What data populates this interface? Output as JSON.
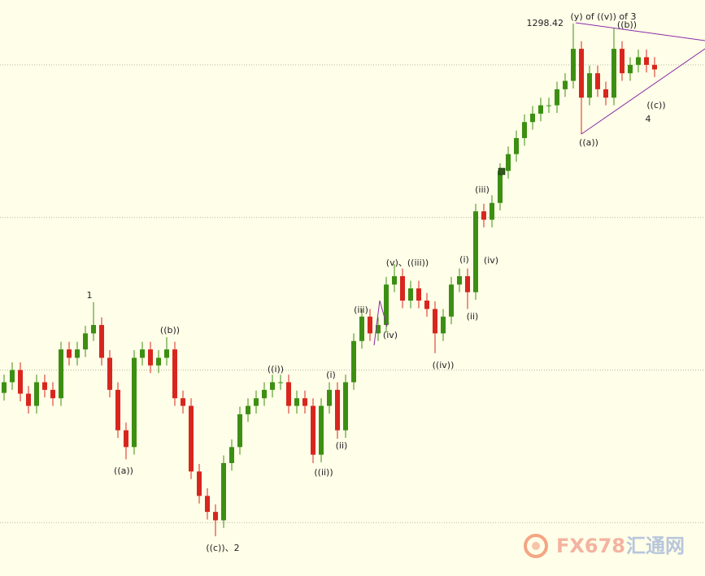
{
  "chart_data": {
    "type": "candlestick",
    "open": [
      1250.0,
      1251.4,
      1253.0,
      1249.9,
      1248.3,
      1251.4,
      1250.4,
      1249.3,
      1255.7,
      1254.6,
      1255.7,
      1257.8,
      1258.9,
      1254.6,
      1250.4,
      1245.1,
      1242.9,
      1254.6,
      1255.7,
      1253.6,
      1254.6,
      1255.7,
      1249.3,
      1248.3,
      1239.7,
      1236.5,
      1234.4,
      1233.3,
      1240.8,
      1242.9,
      1247.2,
      1248.3,
      1249.3,
      1250.4,
      1251.4,
      1251.4,
      1248.3,
      1249.3,
      1248.3,
      1241.9,
      1248.3,
      1250.4,
      1245.1,
      1251.4,
      1256.8,
      1260.0,
      1257.8,
      1258.9,
      1264.2,
      1265.3,
      1262.1,
      1263.7,
      1262.1,
      1261.0,
      1257.8,
      1260.0,
      1264.2,
      1265.3,
      1263.2,
      1273.8,
      1272.7,
      1274.9,
      1279.1,
      1281.3,
      1283.4,
      1285.5,
      1286.6,
      1287.7,
      1287.7,
      1289.8,
      1290.9,
      1295.1,
      1288.7,
      1291.9,
      1289.8,
      1288.7,
      1295.1,
      1291.9,
      1293.0,
      1294.0,
      1293.0
    ],
    "high": [
      1252.4,
      1254.0,
      1254.0,
      1250.9,
      1252.4,
      1252.4,
      1251.4,
      1256.7,
      1256.7,
      1256.7,
      1258.8,
      1261.9,
      1259.9,
      1255.6,
      1251.4,
      1246.1,
      1255.6,
      1256.7,
      1256.7,
      1255.6,
      1257.3,
      1256.7,
      1250.3,
      1249.3,
      1240.7,
      1237.5,
      1235.4,
      1241.8,
      1243.9,
      1248.2,
      1249.3,
      1250.3,
      1251.4,
      1252.4,
      1252.4,
      1252.4,
      1250.3,
      1250.3,
      1249.3,
      1249.3,
      1251.4,
      1251.4,
      1252.4,
      1257.8,
      1261.0,
      1261.0,
      1259.9,
      1265.2,
      1266.9,
      1266.3,
      1264.7,
      1264.7,
      1263.1,
      1262.0,
      1261.0,
      1265.2,
      1266.3,
      1266.3,
      1274.8,
      1274.8,
      1275.9,
      1280.1,
      1282.3,
      1284.4,
      1286.5,
      1287.6,
      1288.7,
      1288.7,
      1290.8,
      1291.9,
      1298.42,
      1296.1,
      1292.9,
      1292.9,
      1290.8,
      1297.8,
      1296.1,
      1294.0,
      1295.0,
      1295.0,
      1294.0
    ],
    "low": [
      1249.0,
      1250.4,
      1248.9,
      1247.3,
      1247.3,
      1249.4,
      1248.3,
      1248.3,
      1253.6,
      1253.6,
      1254.7,
      1256.8,
      1253.6,
      1249.4,
      1244.1,
      1241.3,
      1241.9,
      1253.6,
      1252.6,
      1252.6,
      1253.6,
      1248.3,
      1247.3,
      1238.7,
      1235.5,
      1233.4,
      1231.2,
      1232.3,
      1239.8,
      1241.9,
      1246.2,
      1247.3,
      1248.3,
      1249.4,
      1250.4,
      1247.3,
      1247.3,
      1247.3,
      1240.8,
      1240.9,
      1247.3,
      1244.0,
      1244.1,
      1250.4,
      1255.8,
      1256.8,
      1256.8,
      1257.9,
      1263.2,
      1261.1,
      1261.1,
      1261.1,
      1260.0,
      1255.2,
      1256.8,
      1259.0,
      1263.2,
      1261.0,
      1262.2,
      1271.7,
      1271.7,
      1273.9,
      1278.1,
      1280.3,
      1282.4,
      1284.5,
      1285.6,
      1286.7,
      1286.7,
      1288.8,
      1289.9,
      1283.9,
      1287.7,
      1288.8,
      1287.7,
      1287.7,
      1290.9,
      1290.9,
      1292.0,
      1292.0,
      1291.4
    ],
    "close": [
      1251.4,
      1253.0,
      1249.9,
      1248.3,
      1251.4,
      1250.4,
      1249.3,
      1255.7,
      1254.6,
      1255.7,
      1257.8,
      1258.9,
      1254.6,
      1250.4,
      1245.1,
      1242.9,
      1254.6,
      1255.7,
      1253.6,
      1254.6,
      1255.7,
      1249.3,
      1248.3,
      1239.7,
      1236.5,
      1234.4,
      1233.3,
      1240.8,
      1242.9,
      1247.2,
      1248.3,
      1249.3,
      1250.4,
      1251.4,
      1251.4,
      1248.3,
      1249.3,
      1248.3,
      1241.9,
      1248.3,
      1250.4,
      1245.1,
      1251.4,
      1256.8,
      1260.0,
      1257.8,
      1258.9,
      1264.2,
      1265.3,
      1262.1,
      1263.7,
      1262.1,
      1261.0,
      1257.8,
      1260.0,
      1264.2,
      1265.3,
      1263.2,
      1273.8,
      1272.7,
      1274.9,
      1279.1,
      1281.3,
      1283.4,
      1285.5,
      1286.6,
      1287.7,
      1287.7,
      1289.8,
      1290.9,
      1295.1,
      1288.7,
      1291.9,
      1289.8,
      1288.7,
      1295.1,
      1291.9,
      1293.0,
      1294.0,
      1293.0,
      1292.4
    ],
    "up_color": "#3c8f12",
    "down_color": "#d8261e",
    "ylim": [
      1226,
      1301.5
    ],
    "yticks": [
      1233,
      1253,
      1273,
      1293
    ],
    "grid": true,
    "annotations": [
      "1",
      "((a))",
      "((b))",
      "((c))、2",
      "((i))",
      "((ii))",
      "(i)",
      "(ii)",
      "(iii)",
      "(iv)",
      "(v)、((iii))",
      "((iv))",
      "(i)",
      "(ii)",
      "(iii)",
      "(iv)",
      "(y) of ((v)) of 3",
      "((b))",
      "((a))",
      "((c))",
      "4"
    ]
  },
  "watermark": {
    "brand": "FX678",
    "name": "汇通网"
  }
}
